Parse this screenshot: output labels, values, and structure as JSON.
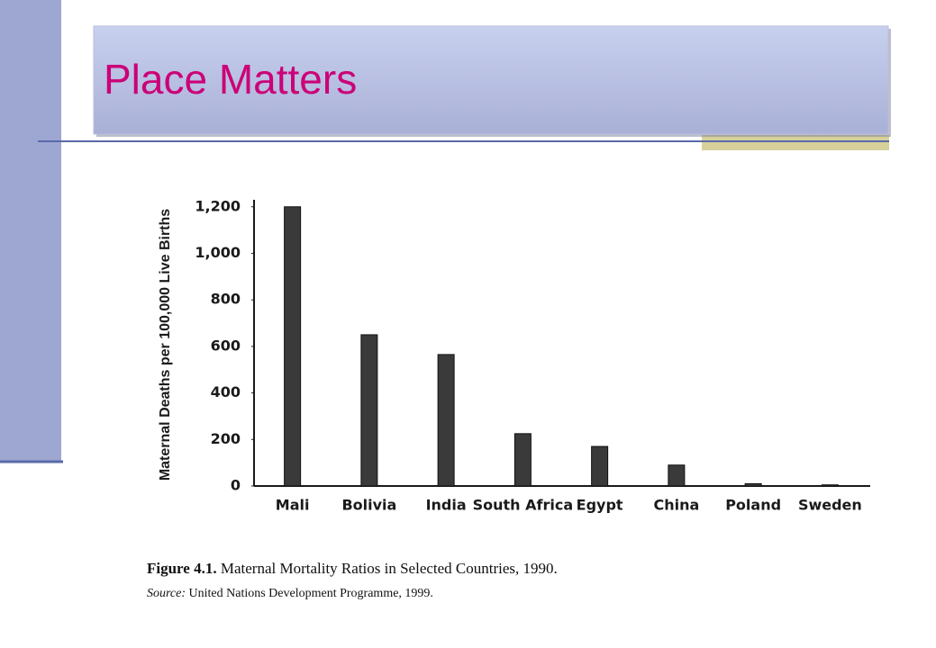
{
  "slide": {
    "title": "Place Matters"
  },
  "chart_data": {
    "type": "bar",
    "y_label": "Maternal Deaths per 100,000 Live Births",
    "categories": [
      "Mali",
      "Bolivia",
      "India",
      "South Africa",
      "Egypt",
      "China",
      "Poland",
      "Sweden"
    ],
    "values": [
      1200,
      650,
      565,
      225,
      170,
      90,
      10,
      5
    ],
    "color": "#3a3a3a",
    "ylim": [
      0,
      1230
    ],
    "yticks": [
      0,
      200,
      400,
      600,
      800,
      {
        "value": 1000,
        "label": "1,000"
      },
      {
        "value": 1200,
        "label": "1,200"
      }
    ],
    "grid": false
  },
  "caption": {
    "label": "Figure 4.1.",
    "text": "Maternal Mortality Ratios in Selected Countries, 1990."
  },
  "source": {
    "label": "Source:",
    "text": "United Nations Development Programme, 1999."
  }
}
